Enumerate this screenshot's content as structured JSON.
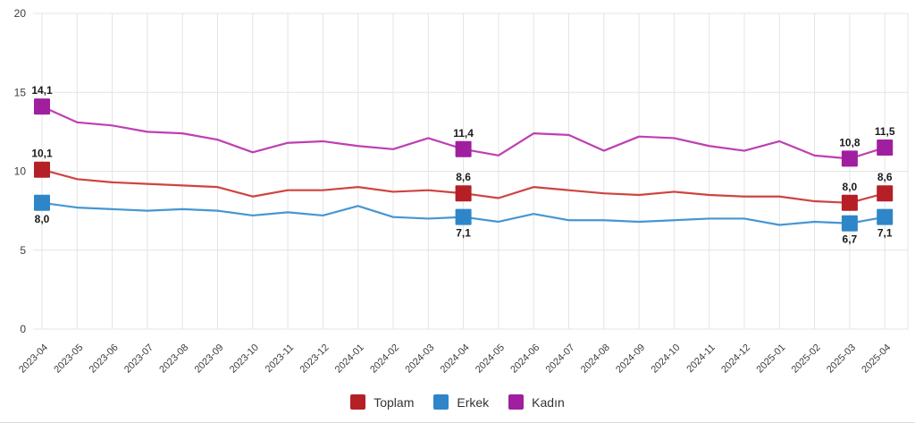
{
  "chart_data": {
    "type": "line",
    "title": "",
    "xlabel": "",
    "ylabel": "",
    "ylim": [
      0,
      20
    ],
    "yticks": [
      0,
      5,
      10,
      15,
      20
    ],
    "ytick_labels": [
      "0",
      "5",
      "10",
      "15",
      "20"
    ],
    "grid": true,
    "legend_position": "bottom",
    "decimal_separator": ",",
    "x": [
      "2023-04",
      "2023-05",
      "2023-06",
      "2023-07",
      "2023-08",
      "2023-09",
      "2023-10",
      "2023-11",
      "2023-12",
      "2024-01",
      "2024-02",
      "2024-03",
      "2024-04",
      "2024-05",
      "2024-06",
      "2024-07",
      "2024-08",
      "2024-09",
      "2024-10",
      "2024-11",
      "2024-12",
      "2025-01",
      "2025-02",
      "2025-03",
      "2025-04"
    ],
    "series": [
      {
        "name": "Toplam",
        "marker_color": "#b42025",
        "line_color": "#ce443f",
        "label_side": "above",
        "values": [
          10.1,
          9.5,
          9.3,
          9.2,
          9.1,
          9.0,
          8.4,
          8.8,
          8.8,
          9.0,
          8.7,
          8.8,
          8.6,
          8.3,
          9.0,
          8.8,
          8.6,
          8.5,
          8.7,
          8.5,
          8.4,
          8.4,
          8.1,
          8.0,
          8.6
        ]
      },
      {
        "name": "Erkek",
        "marker_color": "#2e86c8",
        "line_color": "#4696d2",
        "label_side": "below",
        "values": [
          8.0,
          7.7,
          7.6,
          7.5,
          7.6,
          7.5,
          7.2,
          7.4,
          7.2,
          7.8,
          7.1,
          7.0,
          7.1,
          6.8,
          7.3,
          6.9,
          6.9,
          6.8,
          6.9,
          7.0,
          7.0,
          6.6,
          6.8,
          6.7,
          7.1
        ]
      },
      {
        "name": "Kadın",
        "marker_color": "#a01f9e",
        "line_color": "#be3fb2",
        "label_side": "above",
        "values": [
          14.1,
          13.1,
          12.9,
          12.5,
          12.4,
          12.0,
          11.2,
          11.8,
          11.9,
          11.6,
          11.4,
          12.1,
          11.4,
          11.0,
          12.4,
          12.3,
          11.3,
          12.2,
          12.1,
          11.6,
          11.3,
          11.9,
          11.0,
          10.8,
          11.5
        ]
      }
    ],
    "labeled_point_indices": [
      0,
      12,
      23,
      24
    ],
    "labeled_values": {
      "2023-04": {
        "Toplam": "10,1",
        "Erkek": "8,0",
        "Kadın": "14,1"
      },
      "2024-04": {
        "Toplam": "8,6",
        "Erkek": "7,1",
        "Kadın": "11,4"
      },
      "2025-03": {
        "Toplam": "8,0",
        "Erkek": "6,7",
        "Kadın": "10,8"
      },
      "2025-04": {
        "Toplam": "8,6",
        "Erkek": "7,1",
        "Kadın": "11,5"
      }
    },
    "colors": {
      "background": "#ffffff",
      "gridline": "#e4e4e4",
      "axis_text": "#3d3d3d",
      "value_label": "#1a1a1a"
    }
  }
}
